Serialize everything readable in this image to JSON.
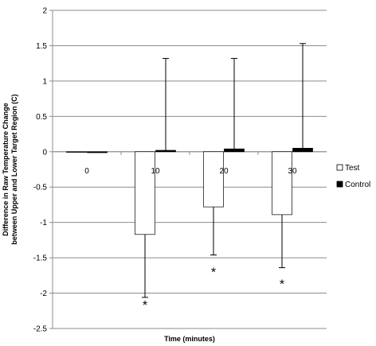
{
  "chart_data": {
    "type": "bar",
    "categories": [
      "0",
      "10",
      "20",
      "30"
    ],
    "series": [
      {
        "name": "Test",
        "color": "#ffffff",
        "values": [
          0,
          -1.17,
          -0.78,
          -0.89
        ],
        "error_lower": [
          0,
          0.89,
          0.68,
          0.75
        ]
      },
      {
        "name": "Control",
        "color": "#000000",
        "values": [
          0,
          0.02,
          0.04,
          0.05
        ],
        "error_upper": [
          0,
          1.3,
          1.28,
          1.48
        ]
      }
    ],
    "annotations": [
      {
        "category": "10",
        "text": "*",
        "y": -2.12
      },
      {
        "category": "20",
        "text": "*",
        "y": -1.65
      },
      {
        "category": "30",
        "text": "*",
        "y": -1.82
      }
    ],
    "xlabel": "Time (minutes)",
    "ylabel_lines": [
      "Difference in Raw Temperature Change",
      "between Upper and Lower Target Region (C)"
    ],
    "ylim": [
      -2.5,
      2
    ],
    "yticks": [
      "2",
      "1.5",
      "1",
      "0.5",
      "0",
      "-0.5",
      "-1",
      "-1.5",
      "-2",
      "-2.5"
    ],
    "ytick_step": 0.5,
    "grid": true,
    "legend_position": "right"
  }
}
